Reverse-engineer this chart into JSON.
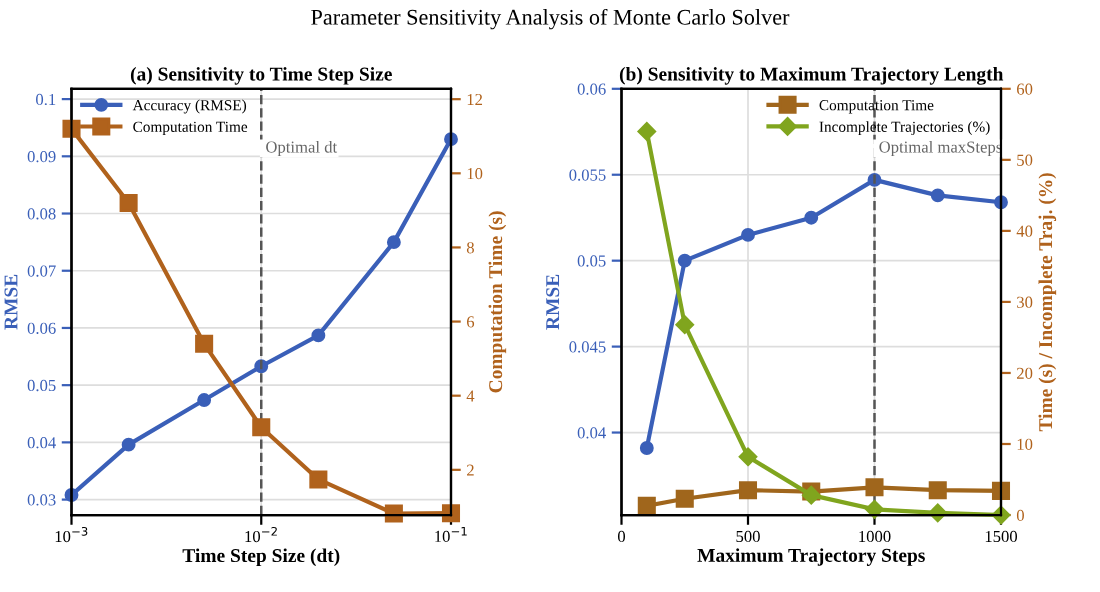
{
  "chart_data": [
    {
      "type": "line",
      "title": "(a) Sensitivity to Time Step Size",
      "xlabel": "Time Step Size (dt)",
      "ylabel": "RMSE",
      "y2label": "Computation Time (s)",
      "annotations": [
        "Parameter Sensitivity Analysis of Monte Carlo Solver"
      ],
      "x": [
        0.001,
        0.002,
        0.005,
        0.01,
        0.02,
        0.05,
        0.1
      ],
      "series": [
        {
          "name": "Accuracy (RMSE)",
          "color": "#3a5fb8",
          "marker": "circle",
          "values": [
            0.0308,
            0.0396,
            0.0474,
            0.0533,
            0.0587,
            0.075,
            0.093
          ]
        },
        {
          "name": "Computation Time",
          "color": "#b0621c",
          "marker": "square",
          "axis": "y2",
          "values": [
            11.2,
            9.2,
            5.4,
            3.15,
            1.74,
            0.82,
            0.83
          ]
        }
      ],
      "log": "x",
      "xlim": [
        0.001,
        0.1
      ],
      "xticks": [
        {
          "value": 0.001,
          "label": "10$^{−3}$"
        },
        {
          "value": 0.01,
          "label": "10$^{−2}$"
        },
        {
          "value": 0.1,
          "label": "10$^{−1}$"
        }
      ],
      "ylim": [
        0.0273,
        0.1018
      ],
      "yticks": [
        0.03,
        0.04,
        0.05,
        0.06,
        0.07,
        0.08,
        0.09,
        0.1
      ],
      "y2lim": [
        0.78,
        12.28
      ],
      "y2ticks": [
        2,
        4,
        6,
        8,
        10,
        12
      ],
      "ref_lines": [
        {
          "axis": "x",
          "value": 0.01,
          "label": "Optimal dt",
          "color": "#555555",
          "line_style": "dashed"
        }
      ],
      "grid": true,
      "legend": "top left"
    },
    {
      "type": "line",
      "title": "(b) Sensitivity to Maximum Trajectory Length",
      "xlabel": "Maximum Trajectory Steps",
      "ylabel": "RMSE",
      "y2label": "Time (s) / Incomplete Traj. (%)",
      "x": [
        100,
        250,
        500,
        750,
        1000,
        1250,
        1500
      ],
      "series": [
        {
          "color": "#3a5fb8",
          "marker": "circle",
          "values": [
            0.0391,
            0.05,
            0.0515,
            0.0525,
            0.0547,
            0.0538,
            0.0534
          ]
        },
        {
          "name": "Computation Time",
          "color": "#a0661c",
          "marker": "square",
          "axis": "y2",
          "values": [
            1.3,
            2.3,
            3.5,
            3.3,
            3.9,
            3.5,
            3.4
          ]
        },
        {
          "name": "Incomplete Trajectories (%)",
          "color": "#80a51e",
          "marker": "diamond",
          "axis": "y2",
          "values": [
            54,
            26.8,
            8.2,
            2.8,
            0.8,
            0.3,
            0
          ]
        }
      ],
      "xlim": [
        0,
        1500
      ],
      "xticks": [
        0,
        500,
        1000,
        1500
      ],
      "ylim": [
        0.0352,
        0.06
      ],
      "yticks": [
        0.04,
        0.045,
        0.05,
        0.055,
        0.06
      ],
      "y2lim": [
        0,
        60
      ],
      "y2ticks": [
        0,
        10,
        20,
        30,
        40,
        50,
        60
      ],
      "ref_lines": [
        {
          "axis": "x",
          "value": 1000,
          "label": "Optimal maxSteps",
          "color": "#555555",
          "line_style": "dashed"
        }
      ],
      "grid": true,
      "legend": "top right"
    }
  ]
}
